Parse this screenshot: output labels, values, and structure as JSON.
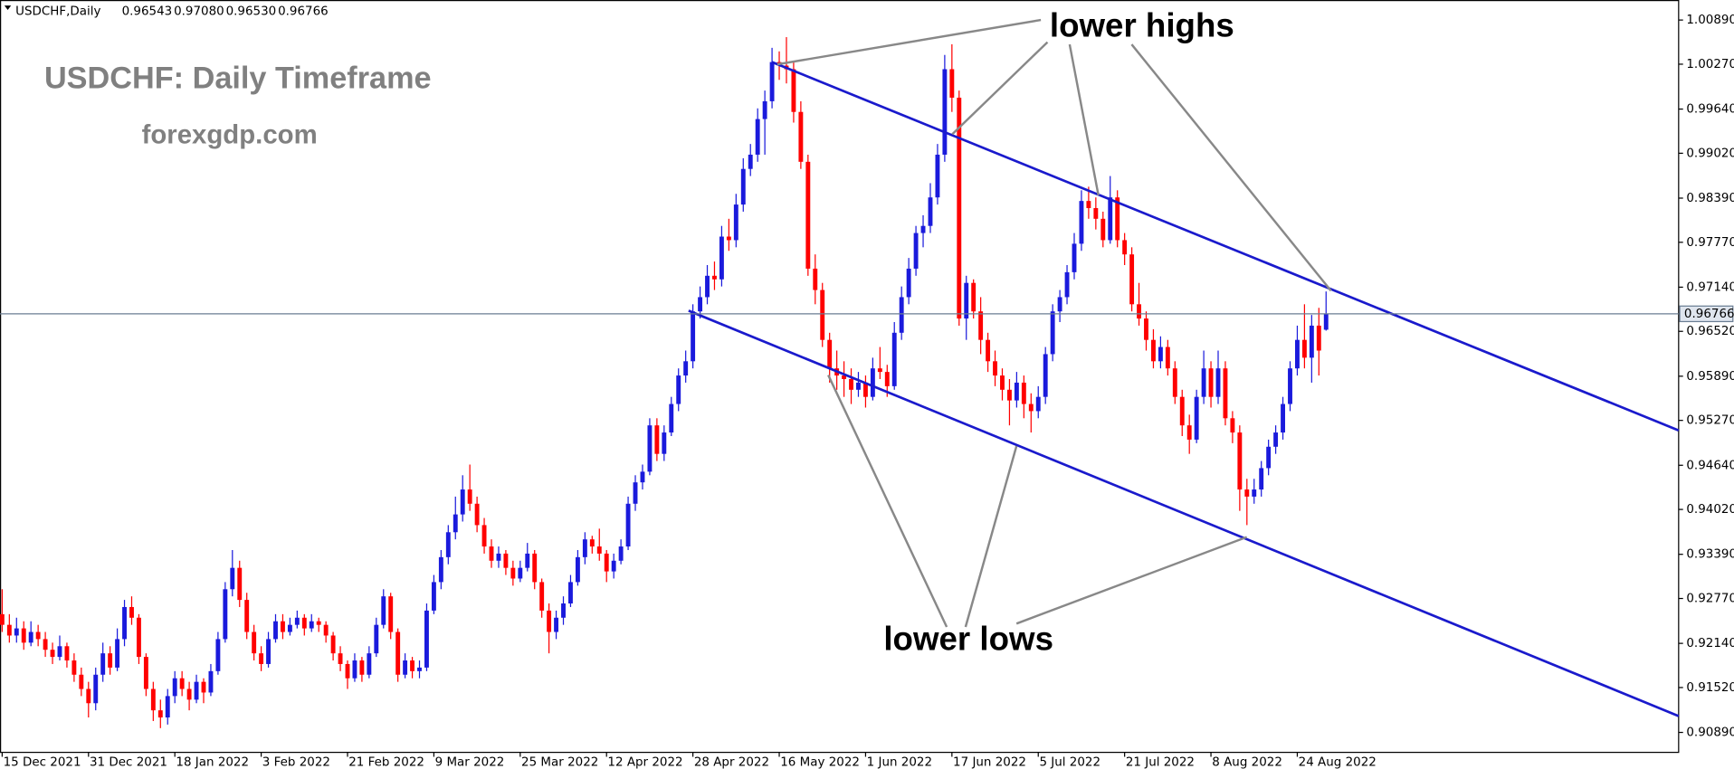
{
  "chart_data": {
    "type": "candlestick",
    "symbol": "USDCHF,Daily",
    "last_bar_labels": [
      "0.96543",
      "0.97080",
      "0.96530",
      "0.96766"
    ],
    "title": "USDCHF: Daily Timeframe",
    "subtitle": "forexgdp.com",
    "annotations": [
      "lower highs",
      "lower lows"
    ],
    "bull_color": "#1a1adc",
    "bear_color": "#ff0000",
    "price_line_color": "#6a7d93",
    "xlim": [
      -0.3,
      233
    ],
    "ylim": [
      0.9061,
      1.0114
    ],
    "xticks": [
      {
        "value": 0,
        "label": "15 Dec 2021"
      },
      {
        "value": 12,
        "label": "31 Dec 2021"
      },
      {
        "value": 24,
        "label": "18 Jan 2022"
      },
      {
        "value": 36,
        "label": "3 Feb 2022"
      },
      {
        "value": 48,
        "label": "21 Feb 2022"
      },
      {
        "value": 60,
        "label": "9 Mar 2022"
      },
      {
        "value": 72,
        "label": "25 Mar 2022"
      },
      {
        "value": 84,
        "label": "12 Apr 2022"
      },
      {
        "value": 96,
        "label": "28 Apr 2022"
      },
      {
        "value": 108,
        "label": "16 May 2022"
      },
      {
        "value": 120,
        "label": "1 Jun 2022"
      },
      {
        "value": 132,
        "label": "17 Jun 2022"
      },
      {
        "value": 144,
        "label": "5 Jul 2022"
      },
      {
        "value": 156,
        "label": "21 Jul 2022"
      },
      {
        "value": 168,
        "label": "8 Aug 2022"
      },
      {
        "value": 180,
        "label": "24 Aug 2022"
      }
    ],
    "yticks": [
      {
        "value": 1.0089,
        "label": "1.00890"
      },
      {
        "value": 1.0027,
        "label": "1.00270"
      },
      {
        "value": 0.9964,
        "label": "0.99640"
      },
      {
        "value": 0.9902,
        "label": "0.99020"
      },
      {
        "value": 0.9839,
        "label": "0.98390"
      },
      {
        "value": 0.9777,
        "label": "0.97770"
      },
      {
        "value": 0.9714,
        "label": "0.97140"
      },
      {
        "value": 0.9652,
        "label": "0.96520"
      },
      {
        "value": 0.9589,
        "label": "0.95890"
      },
      {
        "value": 0.9527,
        "label": "0.95270"
      },
      {
        "value": 0.9464,
        "label": "0.94640"
      },
      {
        "value": 0.9402,
        "label": "0.94020"
      },
      {
        "value": 0.9339,
        "label": "0.93390"
      },
      {
        "value": 0.9277,
        "label": "0.92770"
      },
      {
        "value": 0.9214,
        "label": "0.92140"
      },
      {
        "value": 0.9152,
        "label": "0.91520"
      },
      {
        "value": 0.9089,
        "label": "0.90890"
      }
    ],
    "trendlines": [
      {
        "color": "#1a1acc",
        "points": [
          [
            107,
            1.003
          ],
          [
            233,
            0.9513
          ]
        ]
      },
      {
        "color": "#1a1acc",
        "points": [
          [
            95.4,
            0.9681
          ],
          [
            233,
            0.9112
          ]
        ]
      }
    ],
    "ohlc": [
      [
        0.9255,
        0.929,
        0.923,
        0.924
      ],
      [
        0.924,
        0.9255,
        0.9215,
        0.9225
      ],
      [
        0.9225,
        0.925,
        0.9215,
        0.9235
      ],
      [
        0.9235,
        0.9245,
        0.9205,
        0.9215
      ],
      [
        0.9215,
        0.9245,
        0.921,
        0.923
      ],
      [
        0.923,
        0.924,
        0.921,
        0.922
      ],
      [
        0.922,
        0.923,
        0.9195,
        0.9205
      ],
      [
        0.9205,
        0.9215,
        0.9185,
        0.9195
      ],
      [
        0.9195,
        0.9225,
        0.919,
        0.921
      ],
      [
        0.921,
        0.9215,
        0.918,
        0.919
      ],
      [
        0.919,
        0.92,
        0.916,
        0.917
      ],
      [
        0.917,
        0.918,
        0.914,
        0.915
      ],
      [
        0.915,
        0.916,
        0.911,
        0.913
      ],
      [
        0.913,
        0.918,
        0.912,
        0.917
      ],
      [
        0.917,
        0.9215,
        0.916,
        0.92
      ],
      [
        0.92,
        0.921,
        0.917,
        0.918
      ],
      [
        0.918,
        0.9235,
        0.9175,
        0.922
      ],
      [
        0.922,
        0.9275,
        0.921,
        0.9265
      ],
      [
        0.9265,
        0.928,
        0.924,
        0.925
      ],
      [
        0.925,
        0.9255,
        0.9185,
        0.9195
      ],
      [
        0.9195,
        0.92,
        0.914,
        0.915
      ],
      [
        0.915,
        0.916,
        0.9105,
        0.912
      ],
      [
        0.912,
        0.9135,
        0.9095,
        0.911
      ],
      [
        0.911,
        0.915,
        0.91,
        0.914
      ],
      [
        0.914,
        0.9175,
        0.913,
        0.9165
      ],
      [
        0.9165,
        0.9175,
        0.914,
        0.915
      ],
      [
        0.915,
        0.916,
        0.912,
        0.9135
      ],
      [
        0.9135,
        0.917,
        0.913,
        0.916
      ],
      [
        0.916,
        0.9165,
        0.913,
        0.9145
      ],
      [
        0.9145,
        0.9185,
        0.914,
        0.9175
      ],
      [
        0.9175,
        0.923,
        0.917,
        0.922
      ],
      [
        0.922,
        0.93,
        0.9215,
        0.929
      ],
      [
        0.929,
        0.9345,
        0.928,
        0.932
      ],
      [
        0.932,
        0.933,
        0.9265,
        0.9275
      ],
      [
        0.9275,
        0.9285,
        0.922,
        0.923
      ],
      [
        0.923,
        0.924,
        0.919,
        0.92
      ],
      [
        0.92,
        0.921,
        0.9175,
        0.9185
      ],
      [
        0.9185,
        0.923,
        0.918,
        0.922
      ],
      [
        0.922,
        0.9255,
        0.9215,
        0.9245
      ],
      [
        0.9245,
        0.9255,
        0.922,
        0.923
      ],
      [
        0.923,
        0.925,
        0.9225,
        0.924
      ],
      [
        0.924,
        0.926,
        0.9235,
        0.925
      ],
      [
        0.925,
        0.9255,
        0.9225,
        0.9235
      ],
      [
        0.9235,
        0.9255,
        0.923,
        0.9245
      ],
      [
        0.9245,
        0.925,
        0.923,
        0.924
      ],
      [
        0.924,
        0.9245,
        0.9215,
        0.9225
      ],
      [
        0.9225,
        0.923,
        0.919,
        0.92
      ],
      [
        0.92,
        0.921,
        0.9175,
        0.9185
      ],
      [
        0.9185,
        0.919,
        0.915,
        0.9165
      ],
      [
        0.9165,
        0.92,
        0.916,
        0.919
      ],
      [
        0.919,
        0.9195,
        0.916,
        0.917
      ],
      [
        0.917,
        0.921,
        0.9165,
        0.92
      ],
      [
        0.92,
        0.925,
        0.9195,
        0.924
      ],
      [
        0.924,
        0.929,
        0.9235,
        0.928
      ],
      [
        0.928,
        0.9285,
        0.922,
        0.923
      ],
      [
        0.923,
        0.9235,
        0.916,
        0.917
      ],
      [
        0.917,
        0.92,
        0.9165,
        0.919
      ],
      [
        0.919,
        0.9195,
        0.9165,
        0.9175
      ],
      [
        0.9175,
        0.919,
        0.9165,
        0.918
      ],
      [
        0.918,
        0.927,
        0.9175,
        0.926
      ],
      [
        0.926,
        0.931,
        0.9255,
        0.93
      ],
      [
        0.93,
        0.9345,
        0.929,
        0.9335
      ],
      [
        0.9335,
        0.938,
        0.9325,
        0.937
      ],
      [
        0.937,
        0.942,
        0.936,
        0.9395
      ],
      [
        0.9395,
        0.945,
        0.9385,
        0.943
      ],
      [
        0.943,
        0.9465,
        0.94,
        0.941
      ],
      [
        0.941,
        0.942,
        0.937,
        0.938
      ],
      [
        0.938,
        0.939,
        0.934,
        0.935
      ],
      [
        0.935,
        0.936,
        0.932,
        0.933
      ],
      [
        0.933,
        0.935,
        0.932,
        0.934
      ],
      [
        0.934,
        0.9345,
        0.931,
        0.932
      ],
      [
        0.932,
        0.933,
        0.9295,
        0.9305
      ],
      [
        0.9305,
        0.933,
        0.93,
        0.932
      ],
      [
        0.932,
        0.9355,
        0.9315,
        0.934
      ],
      [
        0.934,
        0.9345,
        0.929,
        0.93
      ],
      [
        0.93,
        0.9305,
        0.925,
        0.926
      ],
      [
        0.926,
        0.927,
        0.92,
        0.923
      ],
      [
        0.923,
        0.926,
        0.922,
        0.925
      ],
      [
        0.925,
        0.928,
        0.924,
        0.927
      ],
      [
        0.927,
        0.931,
        0.9265,
        0.93
      ],
      [
        0.93,
        0.9345,
        0.9295,
        0.9335
      ],
      [
        0.9335,
        0.937,
        0.9325,
        0.936
      ],
      [
        0.936,
        0.9365,
        0.934,
        0.935
      ],
      [
        0.935,
        0.9375,
        0.933,
        0.934
      ],
      [
        0.934,
        0.9345,
        0.93,
        0.9315
      ],
      [
        0.9315,
        0.934,
        0.9305,
        0.933
      ],
      [
        0.933,
        0.936,
        0.9325,
        0.935
      ],
      [
        0.935,
        0.942,
        0.9345,
        0.941
      ],
      [
        0.941,
        0.945,
        0.94,
        0.944
      ],
      [
        0.944,
        0.9465,
        0.943,
        0.9455
      ],
      [
        0.9455,
        0.953,
        0.945,
        0.952
      ],
      [
        0.952,
        0.953,
        0.947,
        0.948
      ],
      [
        0.948,
        0.952,
        0.947,
        0.951
      ],
      [
        0.951,
        0.956,
        0.9505,
        0.955
      ],
      [
        0.955,
        0.96,
        0.954,
        0.959
      ],
      [
        0.959,
        0.9625,
        0.958,
        0.961
      ],
      [
        0.961,
        0.969,
        0.96,
        0.968
      ],
      [
        0.968,
        0.9715,
        0.967,
        0.97
      ],
      [
        0.97,
        0.9745,
        0.969,
        0.973
      ],
      [
        0.973,
        0.975,
        0.971,
        0.9725
      ],
      [
        0.9725,
        0.98,
        0.9715,
        0.9785
      ],
      [
        0.9785,
        0.981,
        0.9765,
        0.978
      ],
      [
        0.978,
        0.9845,
        0.977,
        0.983
      ],
      [
        0.983,
        0.9895,
        0.982,
        0.988
      ],
      [
        0.988,
        0.9915,
        0.987,
        0.99
      ],
      [
        0.99,
        0.9965,
        0.989,
        0.995
      ],
      [
        0.995,
        0.999,
        0.99,
        0.9975
      ],
      [
        0.9975,
        1.005,
        0.9965,
        1.003
      ],
      [
        1.003,
        1.0045,
        1.0005,
        1.0025
      ],
      [
        1.0025,
        1.0065,
        1.0,
        1.002
      ],
      [
        1.002,
        1.003,
        0.9945,
        0.996
      ],
      [
        0.996,
        0.9975,
        0.988,
        0.989
      ],
      [
        0.989,
        0.99,
        0.973,
        0.974
      ],
      [
        0.974,
        0.976,
        0.969,
        0.971
      ],
      [
        0.971,
        0.972,
        0.963,
        0.964
      ],
      [
        0.964,
        0.965,
        0.958,
        0.96
      ],
      [
        0.96,
        0.9625,
        0.957,
        0.959
      ],
      [
        0.959,
        0.961,
        0.956,
        0.9585
      ],
      [
        0.9585,
        0.96,
        0.955,
        0.957
      ],
      [
        0.957,
        0.9595,
        0.956,
        0.958
      ],
      [
        0.958,
        0.959,
        0.9545,
        0.956
      ],
      [
        0.956,
        0.9615,
        0.9555,
        0.96
      ],
      [
        0.96,
        0.963,
        0.9585,
        0.9595
      ],
      [
        0.9595,
        0.9605,
        0.956,
        0.9575
      ],
      [
        0.9575,
        0.9665,
        0.957,
        0.965
      ],
      [
        0.965,
        0.9715,
        0.964,
        0.97
      ],
      [
        0.97,
        0.9755,
        0.969,
        0.974
      ],
      [
        0.974,
        0.98,
        0.973,
        0.979
      ],
      [
        0.979,
        0.9815,
        0.977,
        0.98
      ],
      [
        0.98,
        0.986,
        0.979,
        0.984
      ],
      [
        0.984,
        0.9915,
        0.983,
        0.99
      ],
      [
        0.99,
        1.004,
        0.989,
        1.002
      ],
      [
        1.002,
        1.0055,
        0.996,
        0.998
      ],
      [
        0.998,
        0.999,
        0.966,
        0.967
      ],
      [
        0.967,
        0.973,
        0.964,
        0.972
      ],
      [
        0.972,
        0.9725,
        0.967,
        0.968
      ],
      [
        0.968,
        0.97,
        0.962,
        0.964
      ],
      [
        0.964,
        0.965,
        0.9595,
        0.961
      ],
      [
        0.961,
        0.9625,
        0.9575,
        0.959
      ],
      [
        0.959,
        0.96,
        0.9555,
        0.957
      ],
      [
        0.957,
        0.9585,
        0.952,
        0.9555
      ],
      [
        0.9555,
        0.9595,
        0.9545,
        0.958
      ],
      [
        0.958,
        0.959,
        0.953,
        0.955
      ],
      [
        0.955,
        0.9565,
        0.951,
        0.954
      ],
      [
        0.954,
        0.9575,
        0.953,
        0.956
      ],
      [
        0.956,
        0.963,
        0.955,
        0.962
      ],
      [
        0.962,
        0.969,
        0.961,
        0.968
      ],
      [
        0.968,
        0.971,
        0.9665,
        0.97
      ],
      [
        0.97,
        0.9745,
        0.969,
        0.9735
      ],
      [
        0.9735,
        0.979,
        0.9725,
        0.9775
      ],
      [
        0.9775,
        0.985,
        0.9765,
        0.9835
      ],
      [
        0.9835,
        0.9855,
        0.981,
        0.9825
      ],
      [
        0.9825,
        0.984,
        0.9795,
        0.981
      ],
      [
        0.981,
        0.982,
        0.977,
        0.978
      ],
      [
        0.978,
        0.987,
        0.9775,
        0.984
      ],
      [
        0.984,
        0.985,
        0.977,
        0.978
      ],
      [
        0.978,
        0.979,
        0.9745,
        0.976
      ],
      [
        0.976,
        0.977,
        0.968,
        0.969
      ],
      [
        0.969,
        0.972,
        0.966,
        0.967
      ],
      [
        0.967,
        0.968,
        0.9625,
        0.964
      ],
      [
        0.964,
        0.9655,
        0.96,
        0.961
      ],
      [
        0.961,
        0.9645,
        0.96,
        0.963
      ],
      [
        0.963,
        0.964,
        0.959,
        0.96
      ],
      [
        0.96,
        0.961,
        0.955,
        0.956
      ],
      [
        0.956,
        0.957,
        0.9505,
        0.952
      ],
      [
        0.952,
        0.9535,
        0.948,
        0.95
      ],
      [
        0.95,
        0.957,
        0.9495,
        0.956
      ],
      [
        0.956,
        0.9625,
        0.955,
        0.96
      ],
      [
        0.96,
        0.961,
        0.9545,
        0.956
      ],
      [
        0.956,
        0.9625,
        0.955,
        0.96
      ],
      [
        0.96,
        0.961,
        0.952,
        0.953
      ],
      [
        0.953,
        0.954,
        0.9495,
        0.951
      ],
      [
        0.951,
        0.952,
        0.94,
        0.943
      ],
      [
        0.943,
        0.9445,
        0.938,
        0.942
      ],
      [
        0.942,
        0.9445,
        0.941,
        0.943
      ],
      [
        0.943,
        0.947,
        0.942,
        0.946
      ],
      [
        0.946,
        0.95,
        0.945,
        0.949
      ],
      [
        0.949,
        0.952,
        0.948,
        0.951
      ],
      [
        0.951,
        0.956,
        0.95,
        0.955
      ],
      [
        0.955,
        0.961,
        0.954,
        0.96
      ],
      [
        0.96,
        0.966,
        0.959,
        0.964
      ],
      [
        0.964,
        0.969,
        0.96,
        0.9615
      ],
      [
        0.9615,
        0.9675,
        0.958,
        0.966
      ],
      [
        0.966,
        0.9685,
        0.959,
        0.9625
      ],
      [
        0.96543,
        0.9708,
        0.9653,
        0.96766
      ]
    ]
  }
}
